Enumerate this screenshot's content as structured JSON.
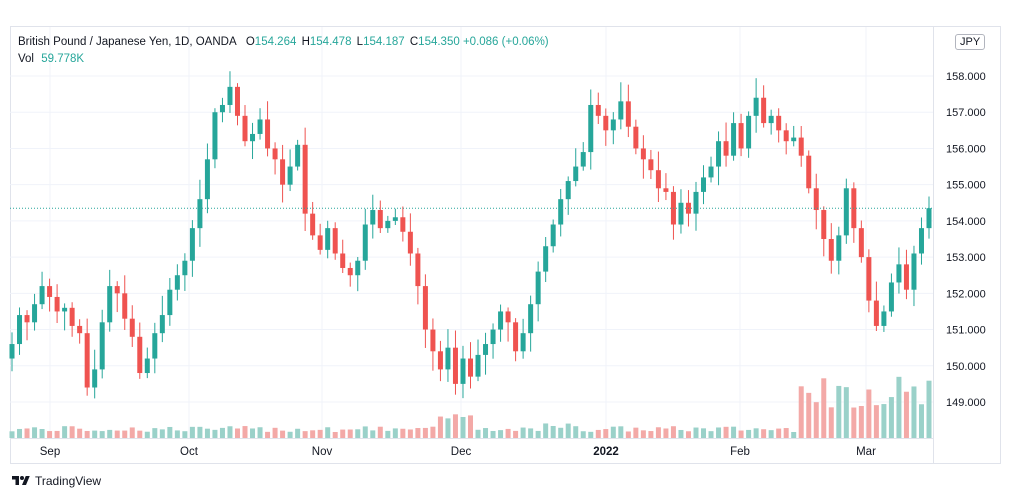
{
  "legend": {
    "symbol": "British Pound / Japanese Yen, 1D, OANDA",
    "o_key": "O",
    "o": "154.264",
    "h_key": "H",
    "h": "154.478",
    "l_key": "L",
    "l": "154.187",
    "c_key": "C",
    "c": "154.350",
    "chg": "+0.086 (+0.06%)",
    "vol_key": "Vol",
    "vol": "59.778K"
  },
  "currency_badge": "JPY",
  "branding": "TradingView",
  "colors": {
    "up": "#26a69a",
    "down": "#ef5350",
    "vol_up": "#9ad1c9",
    "vol_down": "#f3a9a7",
    "grid": "#f0f3fa",
    "current_line": "#26a69a"
  },
  "chart_data": {
    "type": "candlestick",
    "instrument": "British Pound / Japanese Yen",
    "interval": "1D",
    "source": "OANDA",
    "y_ticks": [
      "149.000",
      "150.000",
      "151.000",
      "152.000",
      "153.000",
      "154.000",
      "155.000",
      "156.000",
      "157.000",
      "158.000"
    ],
    "x_ticks": [
      "Sep",
      "Oct",
      "Nov",
      "Dec",
      "2022",
      "Feb",
      "Mar"
    ],
    "ylim": [
      148.0,
      159.0
    ],
    "current_price": 154.35,
    "grid": true,
    "candles_close": [
      150.6,
      151.4,
      151.2,
      151.7,
      152.2,
      151.9,
      151.5,
      151.6,
      151.1,
      150.9,
      149.4,
      149.9,
      151.2,
      152.2,
      152.0,
      151.3,
      150.8,
      149.8,
      150.2,
      150.9,
      151.4,
      152.1,
      152.5,
      152.9,
      153.8,
      154.6,
      155.7,
      157.0,
      157.2,
      157.7,
      156.9,
      156.2,
      156.4,
      156.8,
      156.0,
      155.7,
      155.0,
      155.5,
      156.1,
      154.2,
      153.6,
      153.2,
      153.8,
      153.1,
      152.7,
      152.5,
      152.9,
      153.9,
      154.3,
      153.8,
      154.0,
      154.1,
      153.7,
      153.1,
      152.2,
      151.0,
      150.4,
      149.9,
      150.5,
      149.5,
      150.2,
      149.7,
      150.3,
      150.6,
      151.0,
      151.5,
      151.2,
      150.4,
      150.9,
      151.7,
      152.6,
      153.3,
      153.9,
      154.6,
      155.1,
      155.5,
      155.9,
      157.2,
      156.9,
      156.5,
      156.8,
      157.3,
      156.6,
      156.0,
      155.7,
      155.4,
      154.9,
      154.8,
      153.9,
      154.5,
      154.2,
      154.8,
      155.2,
      155.5,
      156.2,
      155.8,
      156.7,
      156.0,
      156.9,
      157.4,
      156.7,
      156.9,
      156.5,
      156.2,
      156.3,
      155.8,
      154.9,
      154.3,
      153.5,
      152.9,
      153.6,
      154.9,
      153.8,
      153.0,
      151.8,
      151.1,
      151.5,
      152.3,
      152.8,
      152.1,
      153.1,
      153.8,
      154.35
    ],
    "volumes_note": "volume bars scaled relative to peak",
    "series": [
      {
        "name": "GBP/JPY",
        "values_ref": "candles_close"
      }
    ]
  }
}
